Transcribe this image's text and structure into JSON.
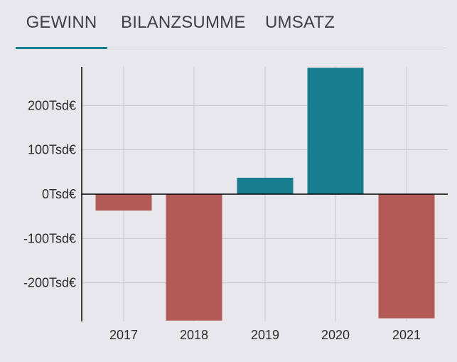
{
  "tabs": [
    {
      "label": "GEWINN",
      "active": true
    },
    {
      "label": "BILANZSUMME",
      "active": false
    },
    {
      "label": "UMSATZ",
      "active": false
    }
  ],
  "colors": {
    "positive": "#187e8f",
    "negative": "#b35a57",
    "accent": "#1a7e92",
    "grid": "#c9c8cc",
    "axis": "#000000"
  },
  "chart_data": {
    "type": "bar",
    "title": "",
    "xlabel": "",
    "ylabel": "",
    "categories": [
      "2017",
      "2018",
      "2019",
      "2020",
      "2021"
    ],
    "values": [
      -37,
      -285,
      37,
      285,
      -280
    ],
    "unit": "Tsd€",
    "ylim": [
      -285,
      285
    ],
    "yticks": [
      200,
      100,
      0,
      -100,
      -200
    ],
    "ytick_labels": [
      "200Tsd€",
      "100Tsd€",
      "0Tsd€",
      "-100Tsd€",
      "-200Tsd€"
    ],
    "grid": true,
    "legend": "none"
  }
}
